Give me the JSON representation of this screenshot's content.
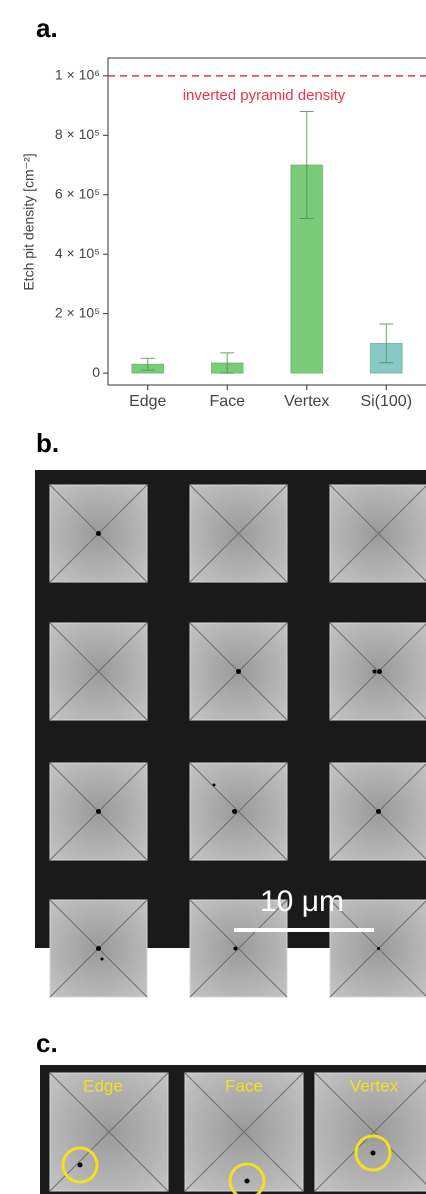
{
  "chart_data": {
    "type": "bar",
    "ylabel": "Etch pit density [cm⁻²]",
    "categories": [
      "Edge",
      "Face",
      "Vertex",
      "Si(100)"
    ],
    "values": [
      30000,
      34000,
      700000,
      100000
    ],
    "errors": [
      20000,
      34000,
      180000,
      65000
    ],
    "colors": [
      "#7acc7a",
      "#7acc7a",
      "#7acc7a",
      "#8ac8c8"
    ],
    "ylim": [
      -40000,
      1060000
    ],
    "yticks": [
      0,
      {
        "value": 200000,
        "label": "2 × 10⁵"
      },
      {
        "value": 400000,
        "label": "4 × 10⁵"
      },
      {
        "value": 600000,
        "label": "6 × 10⁵"
      },
      {
        "value": 800000,
        "label": "8 × 10⁵"
      },
      {
        "value": 1000000,
        "label": "1 × 10⁶"
      }
    ],
    "reference_line": {
      "value": 1000000,
      "label": "inverted pyramid density",
      "color": "#ee3344"
    }
  },
  "panel_labels": [
    "a.",
    "b.",
    "c."
  ],
  "scale_bar": "10 μm",
  "inset_labels": [
    "Edge",
    "Face",
    "Vertex"
  ]
}
